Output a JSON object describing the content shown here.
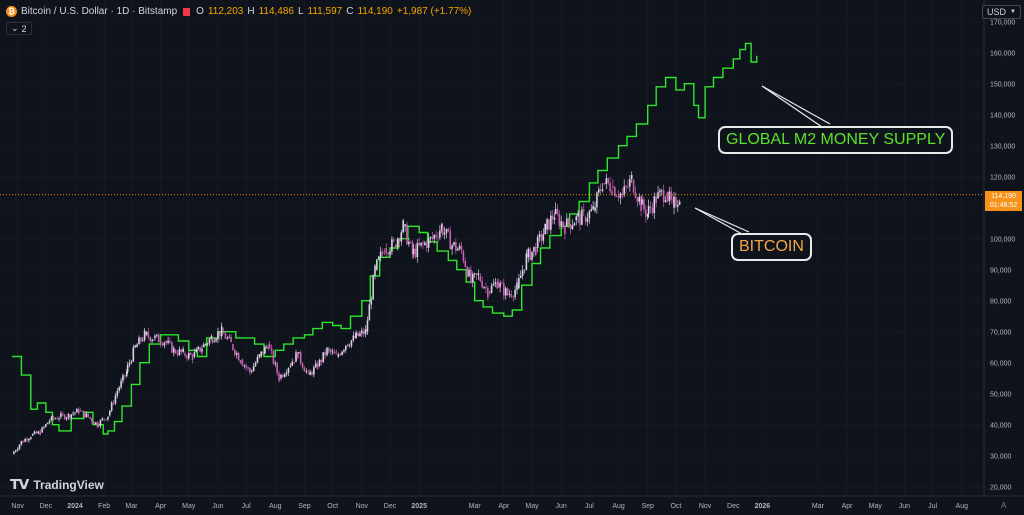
{
  "header": {
    "symbol_title": "Bitcoin / U.S. Dollar · 1D · Bitstamp",
    "open_label": "O",
    "open": "112,203",
    "high_label": "H",
    "high": "114,486",
    "low_label": "L",
    "low": "111,597",
    "close_label": "C",
    "close": "114,190",
    "change": "+1,987 (+1.77%)"
  },
  "indicator_badge": {
    "label": "2"
  },
  "currency": {
    "label": "USD"
  },
  "brand": {
    "name": "TradingView"
  },
  "last_price_tag": {
    "price": "114,190",
    "countdown": "01:48:52"
  },
  "annotations": {
    "m2_label": "GLOBAL M2 MONEY SUPPLY",
    "btc_label": "BITCOIN"
  },
  "colors": {
    "background": "#0f131c",
    "m2_line": "#2ee62c",
    "btc_candle_up": "#d9d2e9",
    "btc_candle_down": "#c860b0",
    "price_line": "#f7931a",
    "m2_label": "#5be22b",
    "btc_label": "#f3a54a"
  },
  "chart_data": {
    "type": "line",
    "ylim": [
      17000,
      177000
    ],
    "y_ticks": [
      20000,
      30000,
      40000,
      50000,
      60000,
      70000,
      80000,
      90000,
      100000,
      110000,
      120000,
      130000,
      140000,
      150000,
      160000,
      170000
    ],
    "y_tick_labels": [
      "20,000",
      "30,000",
      "40,000",
      "50,000",
      "60,000",
      "70,000",
      "80,000",
      "90,000",
      "100,000",
      "110,000",
      "120,000",
      "130,000",
      "140,000",
      "150,000",
      "160,000",
      "170,000"
    ],
    "x_ticks": [
      {
        "date": "2023-11-01",
        "label": "Nov"
      },
      {
        "date": "2023-12-01",
        "label": "Dec"
      },
      {
        "date": "2024-01-01",
        "label": "2024"
      },
      {
        "date": "2024-02-01",
        "label": "Feb"
      },
      {
        "date": "2024-03-01",
        "label": "Mar"
      },
      {
        "date": "2024-04-01",
        "label": "Apr"
      },
      {
        "date": "2024-05-01",
        "label": "May"
      },
      {
        "date": "2024-06-01",
        "label": "Jun"
      },
      {
        "date": "2024-07-01",
        "label": "Jul"
      },
      {
        "date": "2024-08-01",
        "label": "Aug"
      },
      {
        "date": "2024-09-01",
        "label": "Sep"
      },
      {
        "date": "2024-10-01",
        "label": "Oct"
      },
      {
        "date": "2024-11-01",
        "label": "Nov"
      },
      {
        "date": "2024-12-01",
        "label": "Dec"
      },
      {
        "date": "2025-01-01",
        "label": "2025"
      },
      {
        "date": "2025-03-01",
        "label": "Mar"
      },
      {
        "date": "2025-04-01",
        "label": "Apr"
      },
      {
        "date": "2025-05-01",
        "label": "May"
      },
      {
        "date": "2025-06-01",
        "label": "Jun"
      },
      {
        "date": "2025-07-01",
        "label": "Jul"
      },
      {
        "date": "2025-08-01",
        "label": "Aug"
      },
      {
        "date": "2025-09-01",
        "label": "Sep"
      },
      {
        "date": "2025-10-01",
        "label": "Oct"
      },
      {
        "date": "2025-11-01",
        "label": "Nov"
      },
      {
        "date": "2025-12-01",
        "label": "Dec"
      },
      {
        "date": "2026-01-01",
        "label": "2026"
      },
      {
        "date": "2026-03-01",
        "label": "Mar"
      },
      {
        "date": "2026-04-01",
        "label": "Apr"
      },
      {
        "date": "2026-05-01",
        "label": "May"
      },
      {
        "date": "2026-06-01",
        "label": "Jun"
      },
      {
        "date": "2026-07-01",
        "label": "Jul"
      },
      {
        "date": "2026-08-01",
        "label": "Aug"
      }
    ],
    "current_price": 114190,
    "series": [
      {
        "type": "line",
        "points": [
          [
            "2023-10-26",
            62000
          ],
          [
            "2023-11-05",
            56000
          ],
          [
            "2023-11-15",
            45000
          ],
          [
            "2023-11-22",
            47000
          ],
          [
            "2023-12-01",
            44000
          ],
          [
            "2023-12-08",
            40000
          ],
          [
            "2023-12-15",
            38000
          ],
          [
            "2023-12-28",
            42000
          ],
          [
            "2024-01-10",
            44000
          ],
          [
            "2024-01-20",
            40000
          ],
          [
            "2024-01-31",
            37000
          ],
          [
            "2024-02-05",
            38000
          ],
          [
            "2024-02-12",
            41000
          ],
          [
            "2024-02-20",
            46000
          ],
          [
            "2024-03-01",
            53000
          ],
          [
            "2024-03-10",
            60000
          ],
          [
            "2024-03-20",
            66000
          ],
          [
            "2024-04-01",
            69000
          ],
          [
            "2024-04-10",
            69000
          ],
          [
            "2024-04-20",
            67000
          ],
          [
            "2024-05-01",
            64000
          ],
          [
            "2024-05-10",
            62000
          ],
          [
            "2024-05-20",
            68000
          ],
          [
            "2024-06-01",
            70000
          ],
          [
            "2024-06-10",
            70000
          ],
          [
            "2024-06-20",
            68000
          ],
          [
            "2024-07-01",
            68000
          ],
          [
            "2024-07-10",
            66000
          ],
          [
            "2024-07-20",
            62000
          ],
          [
            "2024-08-01",
            64000
          ],
          [
            "2024-08-10",
            66000
          ],
          [
            "2024-08-20",
            68000
          ],
          [
            "2024-09-01",
            69000
          ],
          [
            "2024-09-10",
            71000
          ],
          [
            "2024-09-20",
            73000
          ],
          [
            "2024-10-01",
            72000
          ],
          [
            "2024-10-10",
            71000
          ],
          [
            "2024-10-20",
            75000
          ],
          [
            "2024-11-01",
            80000
          ],
          [
            "2024-11-10",
            88000
          ],
          [
            "2024-11-20",
            94000
          ],
          [
            "2024-12-01",
            97000
          ],
          [
            "2024-12-10",
            100000
          ],
          [
            "2024-12-20",
            104000
          ],
          [
            "2025-01-01",
            102000
          ],
          [
            "2025-01-10",
            99000
          ],
          [
            "2025-01-20",
            96000
          ],
          [
            "2025-02-01",
            93000
          ],
          [
            "2025-02-10",
            90000
          ],
          [
            "2025-02-20",
            86000
          ],
          [
            "2025-03-01",
            80000
          ],
          [
            "2025-03-10",
            78000
          ],
          [
            "2025-03-20",
            76000
          ],
          [
            "2025-04-01",
            75000
          ],
          [
            "2025-04-10",
            77000
          ],
          [
            "2025-04-20",
            85000
          ],
          [
            "2025-05-01",
            92000
          ],
          [
            "2025-05-10",
            97000
          ],
          [
            "2025-05-20",
            101000
          ],
          [
            "2025-06-01",
            104000
          ],
          [
            "2025-06-10",
            108000
          ],
          [
            "2025-06-20",
            112000
          ],
          [
            "2025-07-01",
            118000
          ],
          [
            "2025-07-10",
            122000
          ],
          [
            "2025-07-20",
            126000
          ],
          [
            "2025-08-01",
            130000
          ],
          [
            "2025-08-10",
            133000
          ],
          [
            "2025-08-20",
            137000
          ],
          [
            "2025-09-01",
            143000
          ],
          [
            "2025-09-10",
            149000
          ],
          [
            "2025-09-20",
            152000
          ],
          [
            "2025-10-01",
            148000
          ],
          [
            "2025-10-10",
            150000
          ],
          [
            "2025-10-20",
            143000
          ],
          [
            "2025-10-25",
            139000
          ],
          [
            "2025-11-01",
            149000
          ],
          [
            "2025-11-10",
            152000
          ],
          [
            "2025-11-20",
            155000
          ],
          [
            "2025-12-01",
            158000
          ],
          [
            "2025-12-08",
            161000
          ],
          [
            "2025-12-14",
            163000
          ],
          [
            "2025-12-20",
            157000
          ],
          [
            "2025-12-26",
            159000
          ]
        ]
      },
      {
        "type": "candles",
        "points": [
          [
            "2023-10-26",
            30500
          ],
          [
            "2023-11-05",
            34500
          ],
          [
            "2023-11-15",
            36500
          ],
          [
            "2023-11-25",
            37500
          ],
          [
            "2023-12-05",
            41500
          ],
          [
            "2023-12-15",
            42500
          ],
          [
            "2023-12-25",
            43000
          ],
          [
            "2024-01-05",
            44500
          ],
          [
            "2024-01-15",
            42500
          ],
          [
            "2024-01-25",
            40000
          ],
          [
            "2024-02-05",
            43000
          ],
          [
            "2024-02-15",
            51000
          ],
          [
            "2024-02-25",
            57000
          ],
          [
            "2024-03-05",
            65000
          ],
          [
            "2024-03-15",
            69000
          ],
          [
            "2024-03-25",
            68000
          ],
          [
            "2024-04-05",
            67000
          ],
          [
            "2024-04-15",
            64000
          ],
          [
            "2024-04-25",
            63000
          ],
          [
            "2024-05-05",
            62000
          ],
          [
            "2024-05-15",
            65000
          ],
          [
            "2024-05-25",
            68000
          ],
          [
            "2024-06-05",
            70000
          ],
          [
            "2024-06-15",
            66000
          ],
          [
            "2024-06-25",
            61000
          ],
          [
            "2024-07-05",
            57000
          ],
          [
            "2024-07-15",
            62000
          ],
          [
            "2024-07-25",
            66000
          ],
          [
            "2024-08-05",
            55000
          ],
          [
            "2024-08-15",
            59000
          ],
          [
            "2024-08-25",
            63000
          ],
          [
            "2024-09-05",
            56000
          ],
          [
            "2024-09-15",
            59000
          ],
          [
            "2024-09-25",
            64000
          ],
          [
            "2024-10-05",
            62000
          ],
          [
            "2024-10-15",
            66000
          ],
          [
            "2024-10-25",
            68000
          ],
          [
            "2024-11-05",
            70000
          ],
          [
            "2024-11-15",
            90000
          ],
          [
            "2024-11-25",
            97000
          ],
          [
            "2024-12-05",
            98000
          ],
          [
            "2024-12-15",
            104000
          ],
          [
            "2024-12-25",
            95000
          ],
          [
            "2025-01-05",
            98000
          ],
          [
            "2025-01-15",
            100000
          ],
          [
            "2025-01-25",
            104000
          ],
          [
            "2025-02-05",
            98000
          ],
          [
            "2025-02-15",
            96000
          ],
          [
            "2025-02-25",
            86000
          ],
          [
            "2025-03-05",
            88000
          ],
          [
            "2025-03-15",
            83000
          ],
          [
            "2025-03-25",
            86000
          ],
          [
            "2025-04-05",
            82000
          ],
          [
            "2025-04-15",
            84000
          ],
          [
            "2025-04-25",
            94000
          ],
          [
            "2025-05-05",
            97000
          ],
          [
            "2025-05-15",
            103000
          ],
          [
            "2025-05-25",
            108000
          ],
          [
            "2025-06-05",
            104000
          ],
          [
            "2025-06-15",
            106000
          ],
          [
            "2025-06-25",
            107000
          ],
          [
            "2025-07-05",
            109000
          ],
          [
            "2025-07-15",
            118000
          ],
          [
            "2025-07-25",
            117000
          ],
          [
            "2025-08-05",
            114000
          ],
          [
            "2025-08-15",
            119000
          ],
          [
            "2025-08-25",
            111000
          ],
          [
            "2025-09-01",
            108000
          ],
          [
            "2025-09-10",
            113000
          ],
          [
            "2025-09-20",
            115000
          ],
          [
            "2025-09-28",
            110000
          ],
          [
            "2025-10-05",
            114190
          ]
        ]
      }
    ]
  }
}
